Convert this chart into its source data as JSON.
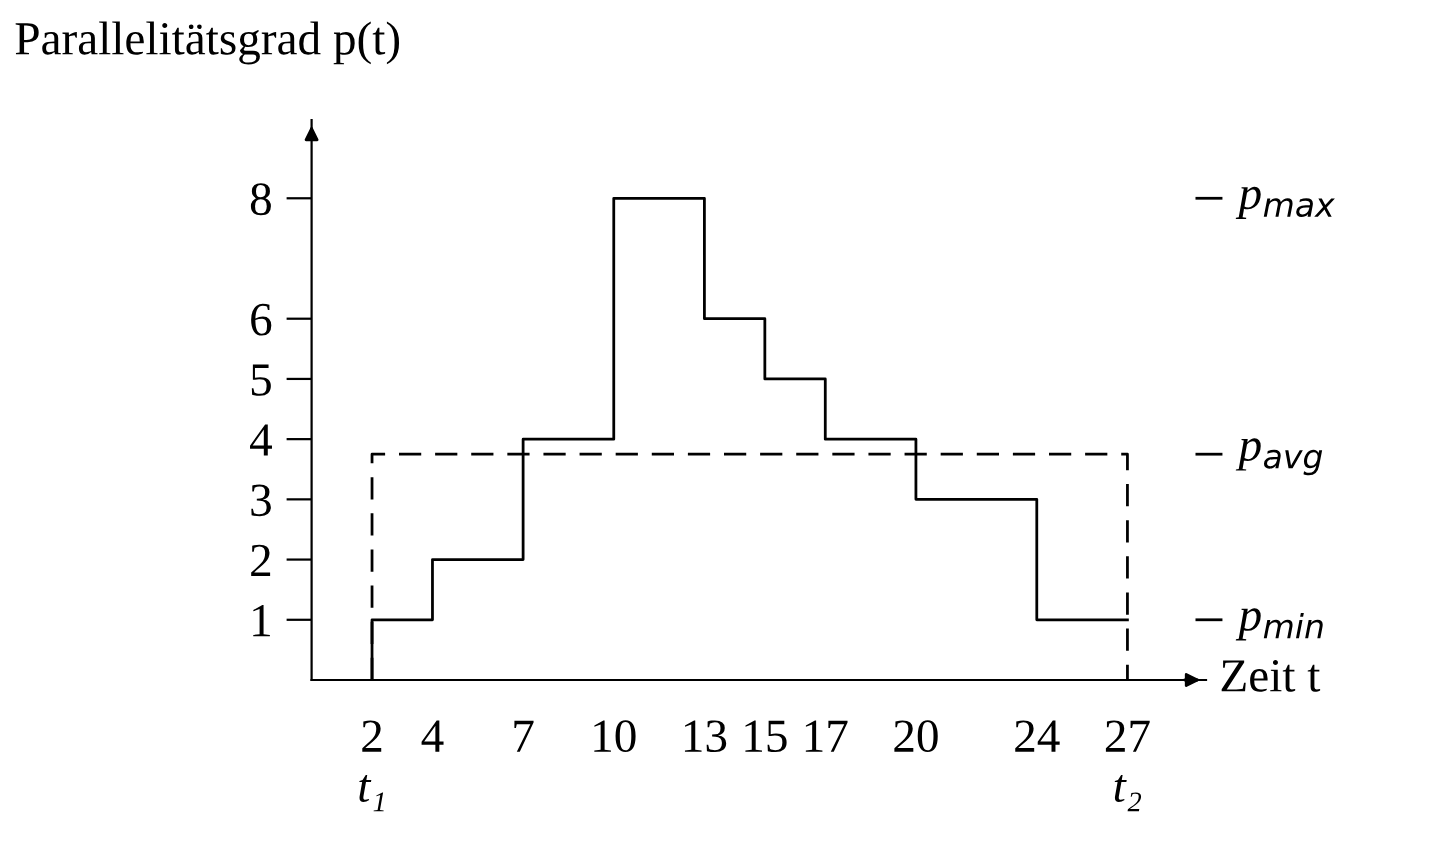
{
  "chart_data": {
    "type": "step",
    "ylabel": "Parallelitätsgrad p(t)",
    "xlabel": "Zeit t",
    "series": [
      {
        "color": "#000000",
        "line_style": "solid",
        "x": [
          2,
          2,
          4,
          7,
          10,
          13,
          15,
          17,
          20,
          24,
          27
        ],
        "values": [
          0,
          1,
          2,
          4,
          8,
          6,
          5,
          4,
          3,
          1,
          1
        ]
      },
      {
        "type": "line",
        "color": "#000000",
        "line_style": "dashed",
        "x": [
          2,
          2,
          27,
          27
        ],
        "values": [
          0,
          3.75,
          3.75,
          0
        ]
      }
    ],
    "xlim": [
      0,
      29.6
    ],
    "xticks": [
      2,
      4,
      7,
      10,
      13,
      15,
      17,
      20,
      24,
      27
    ],
    "ylim": [
      0,
      9.3
    ],
    "yticks": [
      1,
      2,
      3,
      4,
      5,
      6,
      8
    ],
    "annotations": [
      "t₁",
      "t₂",
      "p$_{max}$",
      "p$_{avg}$",
      "p$_{min}$"
    ]
  }
}
